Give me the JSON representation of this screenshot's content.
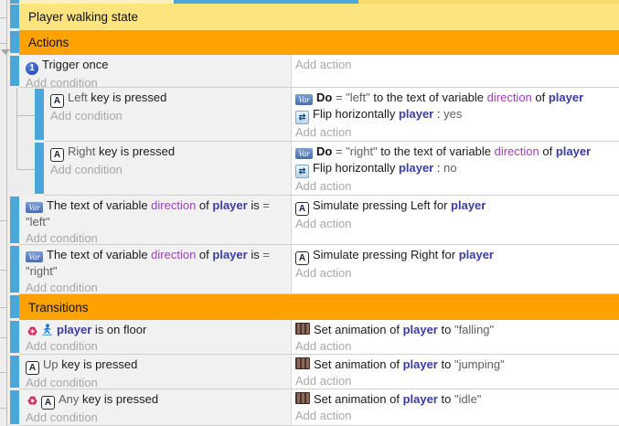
{
  "colors": {
    "group-bg": "#fde47f",
    "section-bg": "#ffa200",
    "bar": "#4ba7da",
    "cond-bg": "#f1f1f1",
    "act-bg": "#ffffff",
    "object-text": "#3b3ba5",
    "variable-text": "#9c42b8",
    "param-text": "#5f5f5f",
    "placeholder-text": "#a8a8a8",
    "insertion-indicator": "#4ba7da"
  },
  "icons": {
    "trigger-once-icon": {
      "glyph": "1"
    },
    "keyboard-a-icon": {
      "glyph": "A"
    },
    "var-icon": {
      "glyph": "Var"
    },
    "flip-horizontal-icon": {
      "glyph": "⇄"
    },
    "invert-icon": {
      "glyph": "♻"
    },
    "animation-icon": {
      "glyph": ""
    },
    "platformer-icon": {
      "glyph": ""
    }
  },
  "rows": [
    {
      "kind": "group",
      "name": "group-header-player-walking-state",
      "label": "Player walking state"
    },
    {
      "kind": "section",
      "name": "section-header-actions",
      "label": "Actions"
    },
    {
      "kind": "event",
      "name": "event-trigger-once",
      "indent": 0,
      "cond": {
        "lines": [
          [
            {
              "i": "trigger-once-icon"
            },
            {
              "t": "Trigger once"
            }
          ]
        ],
        "ph": "Add condition"
      },
      "act": {
        "lines": [],
        "ph": "Add action"
      }
    },
    {
      "kind": "event",
      "name": "event-left-key-pressed",
      "indent": 1,
      "cond": {
        "lines": [
          [
            {
              "i": "keyboard-a-icon"
            },
            {
              "t": "Left ",
              "c": "p"
            },
            {
              "t": "key is pressed"
            }
          ]
        ],
        "ph": "Add condition"
      },
      "act": {
        "lines": [
          [
            {
              "i": "var-icon"
            },
            {
              "t": "Do ",
              "c": "b"
            },
            {
              "t": "= \"left\"",
              "c": "p"
            },
            {
              "t": " to the text of variable "
            },
            {
              "t": "direction",
              "c": "var"
            },
            {
              "t": " of "
            },
            {
              "t": "player",
              "c": "obj"
            }
          ],
          [
            {
              "i": "flip-horizontal-icon"
            },
            {
              "t": "Flip horizontally "
            },
            {
              "t": "player",
              "c": "obj"
            },
            {
              "t": " : "
            },
            {
              "t": "yes",
              "c": "p"
            }
          ]
        ],
        "ph": "Add action"
      }
    },
    {
      "kind": "event",
      "name": "event-right-key-pressed",
      "indent": 1,
      "cond": {
        "lines": [
          [
            {
              "i": "keyboard-a-icon"
            },
            {
              "t": "Right ",
              "c": "p"
            },
            {
              "t": "key is pressed"
            }
          ]
        ],
        "ph": "Add condition"
      },
      "act": {
        "lines": [
          [
            {
              "i": "var-icon"
            },
            {
              "t": "Do ",
              "c": "b"
            },
            {
              "t": "= \"right\"",
              "c": "p"
            },
            {
              "t": " to the text of variable "
            },
            {
              "t": "direction",
              "c": "var"
            },
            {
              "t": " of "
            },
            {
              "t": "player",
              "c": "obj"
            }
          ],
          [
            {
              "i": "flip-horizontal-icon"
            },
            {
              "t": "Flip horizontally "
            },
            {
              "t": "player",
              "c": "obj"
            },
            {
              "t": " : "
            },
            {
              "t": "no",
              "c": "p"
            }
          ]
        ],
        "ph": "Add action"
      }
    },
    {
      "kind": "event",
      "name": "event-direction-is-left",
      "indent": 0,
      "cond": {
        "lines": [
          [
            {
              "i": "var-icon"
            },
            {
              "t": "The text of variable "
            },
            {
              "t": "direction",
              "c": "var"
            },
            {
              "t": " of "
            },
            {
              "t": "player",
              "c": "obj"
            },
            {
              "t": " is "
            },
            {
              "t": "= \"left\"",
              "c": "p"
            }
          ]
        ],
        "ph": "Add condition"
      },
      "act": {
        "lines": [
          [
            {
              "i": "keyboard-a-icon"
            },
            {
              "t": "Simulate pressing Left for "
            },
            {
              "t": "player",
              "c": "obj"
            }
          ]
        ],
        "ph": "Add action"
      }
    },
    {
      "kind": "event",
      "name": "event-direction-is-right",
      "indent": 0,
      "cond": {
        "lines": [
          [
            {
              "i": "var-icon"
            },
            {
              "t": "The text of variable "
            },
            {
              "t": "direction",
              "c": "var"
            },
            {
              "t": " of "
            },
            {
              "t": "player",
              "c": "obj"
            },
            {
              "t": " is "
            },
            {
              "t": "= \"right\"",
              "c": "p"
            }
          ]
        ],
        "ph": "Add condition"
      },
      "act": {
        "lines": [
          [
            {
              "i": "keyboard-a-icon"
            },
            {
              "t": "Simulate pressing Right for "
            },
            {
              "t": "player",
              "c": "obj"
            }
          ]
        ],
        "ph": "Add action"
      }
    },
    {
      "kind": "section",
      "name": "section-header-transitions",
      "label": "Transitions"
    },
    {
      "kind": "event",
      "name": "event-player-on-floor",
      "indent": 0,
      "cond": {
        "lines": [
          [
            {
              "i": "invert-icon"
            },
            {
              "i": "platformer-icon"
            },
            {
              "t": "player",
              "c": "obj"
            },
            {
              "t": " is on floor"
            }
          ]
        ],
        "ph": "Add condition"
      },
      "act": {
        "lines": [
          [
            {
              "i": "animation-icon"
            },
            {
              "t": "Set animation of "
            },
            {
              "t": "player",
              "c": "obj"
            },
            {
              "t": " to "
            },
            {
              "t": "\"falling\"",
              "c": "p"
            }
          ]
        ],
        "ph": "Add action"
      }
    },
    {
      "kind": "event",
      "name": "event-up-key-pressed",
      "indent": 0,
      "cond": {
        "lines": [
          [
            {
              "i": "keyboard-a-icon"
            },
            {
              "t": "Up ",
              "c": "p"
            },
            {
              "t": "key is pressed"
            }
          ]
        ],
        "ph": "Add condition"
      },
      "act": {
        "lines": [
          [
            {
              "i": "animation-icon"
            },
            {
              "t": "Set animation of "
            },
            {
              "t": "player",
              "c": "obj"
            },
            {
              "t": " to "
            },
            {
              "t": "\"jumping\"",
              "c": "p"
            }
          ]
        ],
        "ph": "Add action"
      }
    },
    {
      "kind": "event",
      "name": "event-any-key-pressed",
      "indent": 0,
      "cond": {
        "lines": [
          [
            {
              "i": "invert-icon"
            },
            {
              "i": "keyboard-a-icon"
            },
            {
              "t": "Any ",
              "c": "p"
            },
            {
              "t": "key is pressed"
            }
          ]
        ],
        "ph": "Add condition"
      },
      "act": {
        "lines": [
          [
            {
              "i": "animation-icon"
            },
            {
              "t": "Set animation of "
            },
            {
              "t": "player",
              "c": "obj"
            },
            {
              "t": " to "
            },
            {
              "t": "\"idle\"",
              "c": "p"
            }
          ]
        ],
        "ph": "Add action"
      }
    }
  ]
}
